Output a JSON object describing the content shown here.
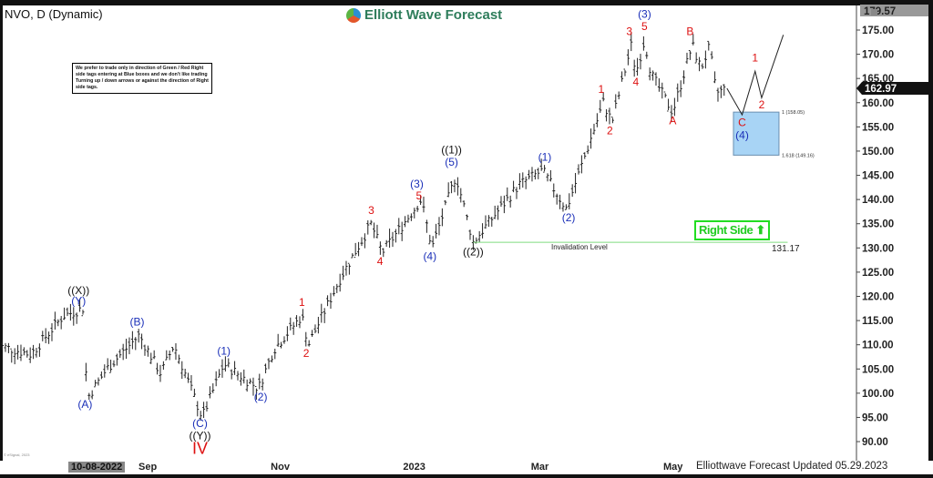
{
  "header": {
    "title": "NVO, D (Dynamic)",
    "logo_text": "Elliott Wave Forecast"
  },
  "note": "We prefer to trade only in direction of Green / Red Right side tags entering at Blue boxes and we don't like trading Turning up / down arrows or against the direction of Right side tags.",
  "right_side_tag": "Right Side",
  "footer": {
    "updated": "Elliottwave Forecast Updated 05.29.2023",
    "esignal": "© eSignal, 2023"
  },
  "colors": {
    "red": "#dd1111",
    "blue": "#1a2fb8",
    "box": "#a8d4f5",
    "green": "#22cc22",
    "bars": "#222222"
  },
  "chart_data": {
    "type": "ohlc",
    "symbol": "NVO",
    "interval": "D",
    "ylim": [
      86,
      180
    ],
    "y_ticks": [
      90,
      95,
      100,
      105,
      110,
      115,
      120,
      125,
      130,
      135,
      140,
      145,
      150,
      155,
      160,
      165,
      170,
      175
    ],
    "last_price": "162.97",
    "top_price": "179.57",
    "x_ticks": [
      {
        "label": "10-08-2022",
        "date": "2022-08-10"
      },
      {
        "label": "Sep",
        "date": "2022-09-01"
      },
      {
        "label": "Nov",
        "date": "2022-11-01"
      },
      {
        "label": "2023",
        "date": "2023-01-01"
      },
      {
        "label": "Mar",
        "date": "2023-03-01"
      },
      {
        "label": "May",
        "date": "2023-05-01"
      }
    ],
    "swings": [
      [
        "2022-06-24",
        110
      ],
      [
        "2022-07-10",
        108
      ],
      [
        "2022-07-25",
        116
      ],
      [
        "2022-08-03",
        117.5
      ],
      [
        "2022-08-05",
        99
      ],
      [
        "2022-08-14",
        105
      ],
      [
        "2022-08-29",
        112
      ],
      [
        "2022-09-08",
        104
      ],
      [
        "2022-09-14",
        110
      ],
      [
        "2022-09-27",
        95
      ],
      [
        "2022-10-07",
        106
      ],
      [
        "2022-10-23",
        101
      ],
      [
        "2022-10-30",
        109
      ],
      [
        "2022-11-12",
        116
      ],
      [
        "2022-11-15",
        110
      ],
      [
        "2022-11-30",
        124
      ],
      [
        "2022-12-14",
        135
      ],
      [
        "2022-12-19",
        129
      ],
      [
        "2023-01-06",
        140
      ],
      [
        "2023-01-11",
        130
      ],
      [
        "2023-01-22",
        145
      ],
      [
        "2023-01-30",
        131.2
      ],
      [
        "2023-02-20",
        143
      ],
      [
        "2023-03-03",
        146
      ],
      [
        "2023-03-14",
        138
      ],
      [
        "2023-03-31",
        160
      ],
      [
        "2023-04-04",
        156
      ],
      [
        "2023-04-13",
        172
      ],
      [
        "2023-04-15",
        166
      ],
      [
        "2023-04-19",
        173
      ],
      [
        "2023-04-22",
        166
      ],
      [
        "2023-05-02",
        158
      ],
      [
        "2023-05-11",
        172
      ],
      [
        "2023-05-15",
        167
      ],
      [
        "2023-05-19",
        171.5
      ],
      [
        "2023-05-22",
        162
      ],
      [
        "2023-05-27",
        162.97
      ]
    ],
    "projection": [
      [
        "2023-06-03",
        157.5
      ],
      [
        "2023-06-09",
        166.5
      ],
      [
        "2023-06-12",
        161
      ],
      [
        "2023-06-22",
        174
      ]
    ],
    "blue_box": {
      "from": "2023-05-30",
      "to": "2023-06-20",
      "top": 158.05,
      "bottom": 149.16,
      "top_label": "1 (158.05)",
      "bottom_label": "1.618 (149.16)"
    },
    "invalidation": {
      "price": 131.17,
      "price_label": "131.17",
      "label": "Invalidation Level",
      "from": "2023-01-30",
      "to": "2023-06-24"
    },
    "labels": [
      {
        "t": "((X))",
        "d": "2022-08-01",
        "p": 120.5,
        "c": "black"
      },
      {
        "t": "(Y)",
        "d": "2022-08-01",
        "p": 118.3,
        "c": "blue"
      },
      {
        "t": "(A)",
        "d": "2022-08-04",
        "p": 97,
        "c": "blue"
      },
      {
        "t": "(B)",
        "d": "2022-08-28",
        "p": 114,
        "c": "blue"
      },
      {
        "t": "(C)",
        "d": "2022-09-26",
        "p": 93,
        "c": "blue"
      },
      {
        "t": "((Y))",
        "d": "2022-09-26",
        "p": 90.5,
        "c": "black"
      },
      {
        "t": "IV",
        "d": "2022-09-26",
        "p": 87.5,
        "c": "red",
        "big": true
      },
      {
        "t": "(1)",
        "d": "2022-10-07",
        "p": 108,
        "c": "blue"
      },
      {
        "t": "(2)",
        "d": "2022-10-24",
        "p": 98.5,
        "c": "blue"
      },
      {
        "t": "1",
        "d": "2022-11-12",
        "p": 118,
        "c": "red"
      },
      {
        "t": "2",
        "d": "2022-11-14",
        "p": 107.5,
        "c": "red"
      },
      {
        "t": "3",
        "d": "2022-12-14",
        "p": 137,
        "c": "red"
      },
      {
        "t": "4",
        "d": "2022-12-18",
        "p": 126.5,
        "c": "red"
      },
      {
        "t": "(3)",
        "d": "2023-01-04",
        "p": 142.5,
        "c": "blue"
      },
      {
        "t": "5",
        "d": "2023-01-05",
        "p": 140,
        "c": "red"
      },
      {
        "t": "(4)",
        "d": "2023-01-10",
        "p": 127.5,
        "c": "blue"
      },
      {
        "t": "((1))",
        "d": "2023-01-20",
        "p": 149.5,
        "c": "black"
      },
      {
        "t": "(5)",
        "d": "2023-01-20",
        "p": 147,
        "c": "blue"
      },
      {
        "t": "((2))",
        "d": "2023-01-30",
        "p": 128.5,
        "c": "black"
      },
      {
        "t": "(1)",
        "d": "2023-03-04",
        "p": 148,
        "c": "blue"
      },
      {
        "t": "(2)",
        "d": "2023-03-15",
        "p": 135.5,
        "c": "blue"
      },
      {
        "t": "1",
        "d": "2023-03-30",
        "p": 162,
        "c": "red"
      },
      {
        "t": "2",
        "d": "2023-04-03",
        "p": 153.5,
        "c": "red"
      },
      {
        "t": "3",
        "d": "2023-04-12",
        "p": 174,
        "c": "red"
      },
      {
        "t": "4",
        "d": "2023-04-15",
        "p": 163.5,
        "c": "red"
      },
      {
        "t": "(3)",
        "d": "2023-04-19",
        "p": 177.5,
        "c": "blue"
      },
      {
        "t": "5",
        "d": "2023-04-19",
        "p": 175,
        "c": "red"
      },
      {
        "t": "A",
        "d": "2023-05-02",
        "p": 155.5,
        "c": "red"
      },
      {
        "t": "B",
        "d": "2023-05-10",
        "p": 174,
        "c": "red"
      },
      {
        "t": "C",
        "d": "2023-06-03",
        "p": 155.2,
        "c": "red"
      },
      {
        "t": "(4)",
        "d": "2023-06-03",
        "p": 152.5,
        "c": "blue"
      },
      {
        "t": "1",
        "d": "2023-06-09",
        "p": 168.5,
        "c": "red"
      },
      {
        "t": "2",
        "d": "2023-06-12",
        "p": 158.8,
        "c": "red"
      }
    ]
  }
}
